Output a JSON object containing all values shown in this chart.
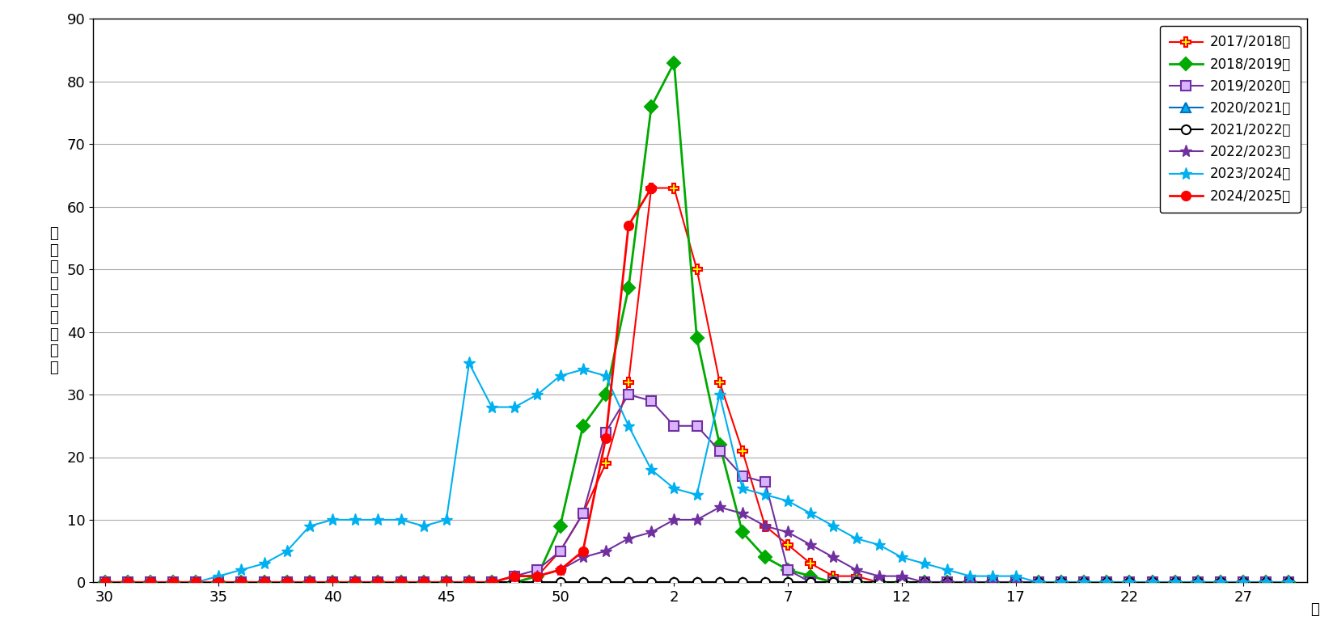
{
  "figsize": [
    16.49,
    7.83
  ],
  "dpi": 100,
  "background_color": "#FFFFFF",
  "ylabel_chars": [
    "定",
    "点",
    "あ",
    "た",
    "り",
    "の",
    "報",
    "告",
    "数"
  ],
  "week_suffix": "週",
  "ylim": [
    0,
    90
  ],
  "yticks": [
    0,
    10,
    20,
    30,
    40,
    50,
    60,
    70,
    80,
    90
  ],
  "xlim": [
    29.5,
    82.8
  ],
  "xtick_positions": [
    30,
    35,
    40,
    45,
    50,
    55,
    60,
    65,
    70,
    75,
    80
  ],
  "xtick_labels": [
    "30",
    "35",
    "40",
    "45",
    "50",
    "2",
    "7",
    "12",
    "17",
    "22",
    "27"
  ],
  "grid_color": "#AAAAAA",
  "series": [
    {
      "key": "2017/2018年",
      "color": "#FF0000",
      "marker": "P",
      "mfc": "#FFFF00",
      "mec": "#FF0000",
      "ms": 8,
      "mew": 1.5,
      "lw": 1.5,
      "x": [
        30,
        31,
        32,
        33,
        34,
        35,
        36,
        37,
        38,
        39,
        40,
        41,
        42,
        43,
        44,
        45,
        46,
        47,
        48,
        49,
        50,
        51,
        52,
        53,
        54,
        55,
        56,
        57,
        58,
        59,
        60,
        61,
        62,
        63,
        64,
        65,
        66,
        67,
        68,
        69,
        70,
        71,
        72,
        73,
        74,
        75,
        76,
        77,
        78,
        79,
        80,
        81,
        82
      ],
      "y": [
        0,
        0,
        0,
        0,
        0,
        0,
        0,
        0,
        0,
        0,
        0,
        0,
        0,
        0,
        0,
        0,
        0,
        0,
        0,
        1,
        5,
        11,
        19,
        32,
        63,
        63,
        50,
        32,
        21,
        9,
        6,
        3,
        1,
        1,
        0,
        0,
        0,
        0,
        0,
        0,
        0,
        0,
        0,
        0,
        0,
        0,
        0,
        0,
        0,
        0,
        0,
        0,
        0
      ]
    },
    {
      "key": "2018/2019年",
      "color": "#00AA00",
      "marker": "D",
      "mfc": "#00AA00",
      "mec": "#00AA00",
      "ms": 8,
      "mew": 1.5,
      "lw": 2.0,
      "x": [
        30,
        31,
        32,
        33,
        34,
        35,
        36,
        37,
        38,
        39,
        40,
        41,
        42,
        43,
        44,
        45,
        46,
        47,
        48,
        49,
        50,
        51,
        52,
        53,
        54,
        55,
        56,
        57,
        58,
        59,
        60,
        61,
        62,
        63,
        64,
        65,
        66,
        67,
        68,
        69,
        70,
        71,
        72,
        73,
        74,
        75,
        76,
        77,
        78,
        79,
        80,
        81,
        82
      ],
      "y": [
        0,
        0,
        0,
        0,
        0,
        0,
        0,
        0,
        0,
        0,
        0,
        0,
        0,
        0,
        0,
        0,
        0,
        0,
        0,
        1,
        9,
        25,
        30,
        47,
        76,
        83,
        39,
        22,
        8,
        4,
        2,
        1,
        0,
        0,
        0,
        0,
        0,
        0,
        0,
        0,
        0,
        0,
        0,
        0,
        0,
        0,
        0,
        0,
        0,
        0,
        0,
        0,
        0
      ]
    },
    {
      "key": "2019/2020年",
      "color": "#7030A0",
      "marker": "s",
      "mfc": "#D9B3FF",
      "mec": "#7030A0",
      "ms": 8,
      "mew": 1.5,
      "lw": 1.5,
      "x": [
        30,
        31,
        32,
        33,
        34,
        35,
        36,
        37,
        38,
        39,
        40,
        41,
        42,
        43,
        44,
        45,
        46,
        47,
        48,
        49,
        50,
        51,
        52,
        53,
        54,
        55,
        56,
        57,
        58,
        59,
        60,
        61,
        62,
        63,
        64,
        65,
        66,
        67,
        68,
        69,
        70,
        71,
        72,
        73,
        74,
        75,
        76,
        77,
        78,
        79,
        80,
        81,
        82
      ],
      "y": [
        0,
        0,
        0,
        0,
        0,
        0,
        0,
        0,
        0,
        0,
        0,
        0,
        0,
        0,
        0,
        0,
        0,
        0,
        1,
        2,
        5,
        11,
        24,
        30,
        29,
        25,
        25,
        21,
        17,
        16,
        2,
        0,
        0,
        0,
        0,
        0,
        0,
        0,
        0,
        0,
        0,
        0,
        0,
        0,
        0,
        0,
        0,
        0,
        0,
        0,
        0,
        0,
        0
      ]
    },
    {
      "key": "2020/2021年",
      "color": "#0070C0",
      "marker": "^",
      "mfc": "#00B0F0",
      "mec": "#0070C0",
      "ms": 8,
      "mew": 1.5,
      "lw": 1.5,
      "x": [
        30,
        31,
        32,
        33,
        34,
        35,
        36,
        37,
        38,
        39,
        40,
        41,
        42,
        43,
        44,
        45,
        46,
        47,
        48,
        49,
        50,
        51,
        52,
        53,
        54,
        55,
        56,
        57,
        58,
        59,
        60,
        61,
        62,
        63,
        64,
        65,
        66,
        67,
        68,
        69,
        70,
        71,
        72,
        73,
        74,
        75,
        76,
        77,
        78,
        79,
        80,
        81,
        82
      ],
      "y": [
        0,
        0,
        0,
        0,
        0,
        0,
        0,
        0,
        0,
        0,
        0,
        0,
        0,
        0,
        0,
        0,
        0,
        0,
        0,
        0,
        0,
        0,
        0,
        0,
        0,
        0,
        0,
        0,
        0,
        0,
        0,
        0,
        0,
        0,
        0,
        0,
        0,
        0,
        0,
        0,
        0,
        0,
        0,
        0,
        0,
        0,
        0,
        0,
        0,
        0,
        0,
        0,
        0
      ]
    },
    {
      "key": "2021/2022年",
      "color": "#000000",
      "marker": "o",
      "mfc": "#FFFFFF",
      "mec": "#000000",
      "ms": 8,
      "mew": 1.5,
      "lw": 1.5,
      "x": [
        30,
        31,
        32,
        33,
        34,
        35,
        36,
        37,
        38,
        39,
        40,
        41,
        42,
        43,
        44,
        45,
        46,
        47,
        48,
        49,
        50,
        51,
        52,
        53,
        54,
        55,
        56,
        57,
        58,
        59,
        60,
        61,
        62,
        63,
        64,
        65,
        66,
        67,
        68,
        69,
        70,
        71,
        72,
        73,
        74,
        75,
        76,
        77,
        78,
        79,
        80,
        81,
        82
      ],
      "y": [
        0,
        0,
        0,
        0,
        0,
        0,
        0,
        0,
        0,
        0,
        0,
        0,
        0,
        0,
        0,
        0,
        0,
        0,
        0,
        0,
        0,
        0,
        0,
        0,
        0,
        0,
        0,
        0,
        0,
        0,
        0,
        0,
        0,
        0,
        0,
        0,
        0,
        0,
        0,
        0,
        0,
        0,
        0,
        0,
        0,
        0,
        0,
        0,
        0,
        0,
        0,
        0,
        0
      ]
    },
    {
      "key": "2022/2023年",
      "color": "#7030A0",
      "marker": "*",
      "mfc": "#7030A0",
      "mec": "#7030A0",
      "ms": 11,
      "mew": 1.0,
      "lw": 1.5,
      "x": [
        30,
        31,
        32,
        33,
        34,
        35,
        36,
        37,
        38,
        39,
        40,
        41,
        42,
        43,
        44,
        45,
        46,
        47,
        48,
        49,
        50,
        51,
        52,
        53,
        54,
        55,
        56,
        57,
        58,
        59,
        60,
        61,
        62,
        63,
        64,
        65,
        66,
        67,
        68,
        69,
        70,
        71,
        72,
        73,
        74,
        75,
        76,
        77,
        78,
        79,
        80,
        81,
        82
      ],
      "y": [
        0,
        0,
        0,
        0,
        0,
        0,
        0,
        0,
        0,
        0,
        0,
        0,
        0,
        0,
        0,
        0,
        0,
        0,
        1,
        1,
        2,
        4,
        5,
        7,
        8,
        10,
        10,
        12,
        11,
        9,
        8,
        6,
        4,
        2,
        1,
        1,
        0,
        0,
        0,
        0,
        0,
        0,
        0,
        0,
        0,
        0,
        0,
        0,
        0,
        0,
        0,
        0,
        0
      ]
    },
    {
      "key": "2023/2024年",
      "color": "#00B0F0",
      "marker": "*",
      "mfc": "#00B0F0",
      "mec": "#00B0F0",
      "ms": 11,
      "mew": 1.0,
      "lw": 1.5,
      "x": [
        30,
        31,
        32,
        33,
        34,
        35,
        36,
        37,
        38,
        39,
        40,
        41,
        42,
        43,
        44,
        45,
        46,
        47,
        48,
        49,
        50,
        51,
        52,
        53,
        54,
        55,
        56,
        57,
        58,
        59,
        60,
        61,
        62,
        63,
        64,
        65,
        66,
        67,
        68,
        69,
        70,
        71,
        72,
        73,
        74,
        75,
        76,
        77,
        78,
        79,
        80,
        81,
        82
      ],
      "y": [
        0,
        0,
        0,
        0,
        0,
        1,
        2,
        3,
        5,
        9,
        10,
        10,
        10,
        10,
        9,
        10,
        35,
        28,
        28,
        30,
        33,
        34,
        33,
        25,
        18,
        15,
        14,
        30,
        15,
        14,
        13,
        11,
        9,
        7,
        6,
        4,
        3,
        2,
        1,
        1,
        1,
        0,
        0,
        0,
        0,
        0,
        0,
        0,
        0,
        0,
        0,
        0,
        0
      ]
    },
    {
      "key": "2024/2025年",
      "color": "#FF0000",
      "marker": "o",
      "mfc": "#FF0000",
      "mec": "#FF0000",
      "ms": 8,
      "mew": 1.5,
      "lw": 2.0,
      "x": [
        30,
        31,
        32,
        33,
        34,
        35,
        36,
        37,
        38,
        39,
        40,
        41,
        42,
        43,
        44,
        45,
        46,
        47,
        48,
        49,
        50,
        51,
        52,
        53,
        54
      ],
      "y": [
        0,
        0,
        0,
        0,
        0,
        0,
        0,
        0,
        0,
        0,
        0,
        0,
        0,
        0,
        0,
        0,
        0,
        0,
        1,
        1,
        2,
        5,
        23,
        57,
        63
      ]
    }
  ]
}
